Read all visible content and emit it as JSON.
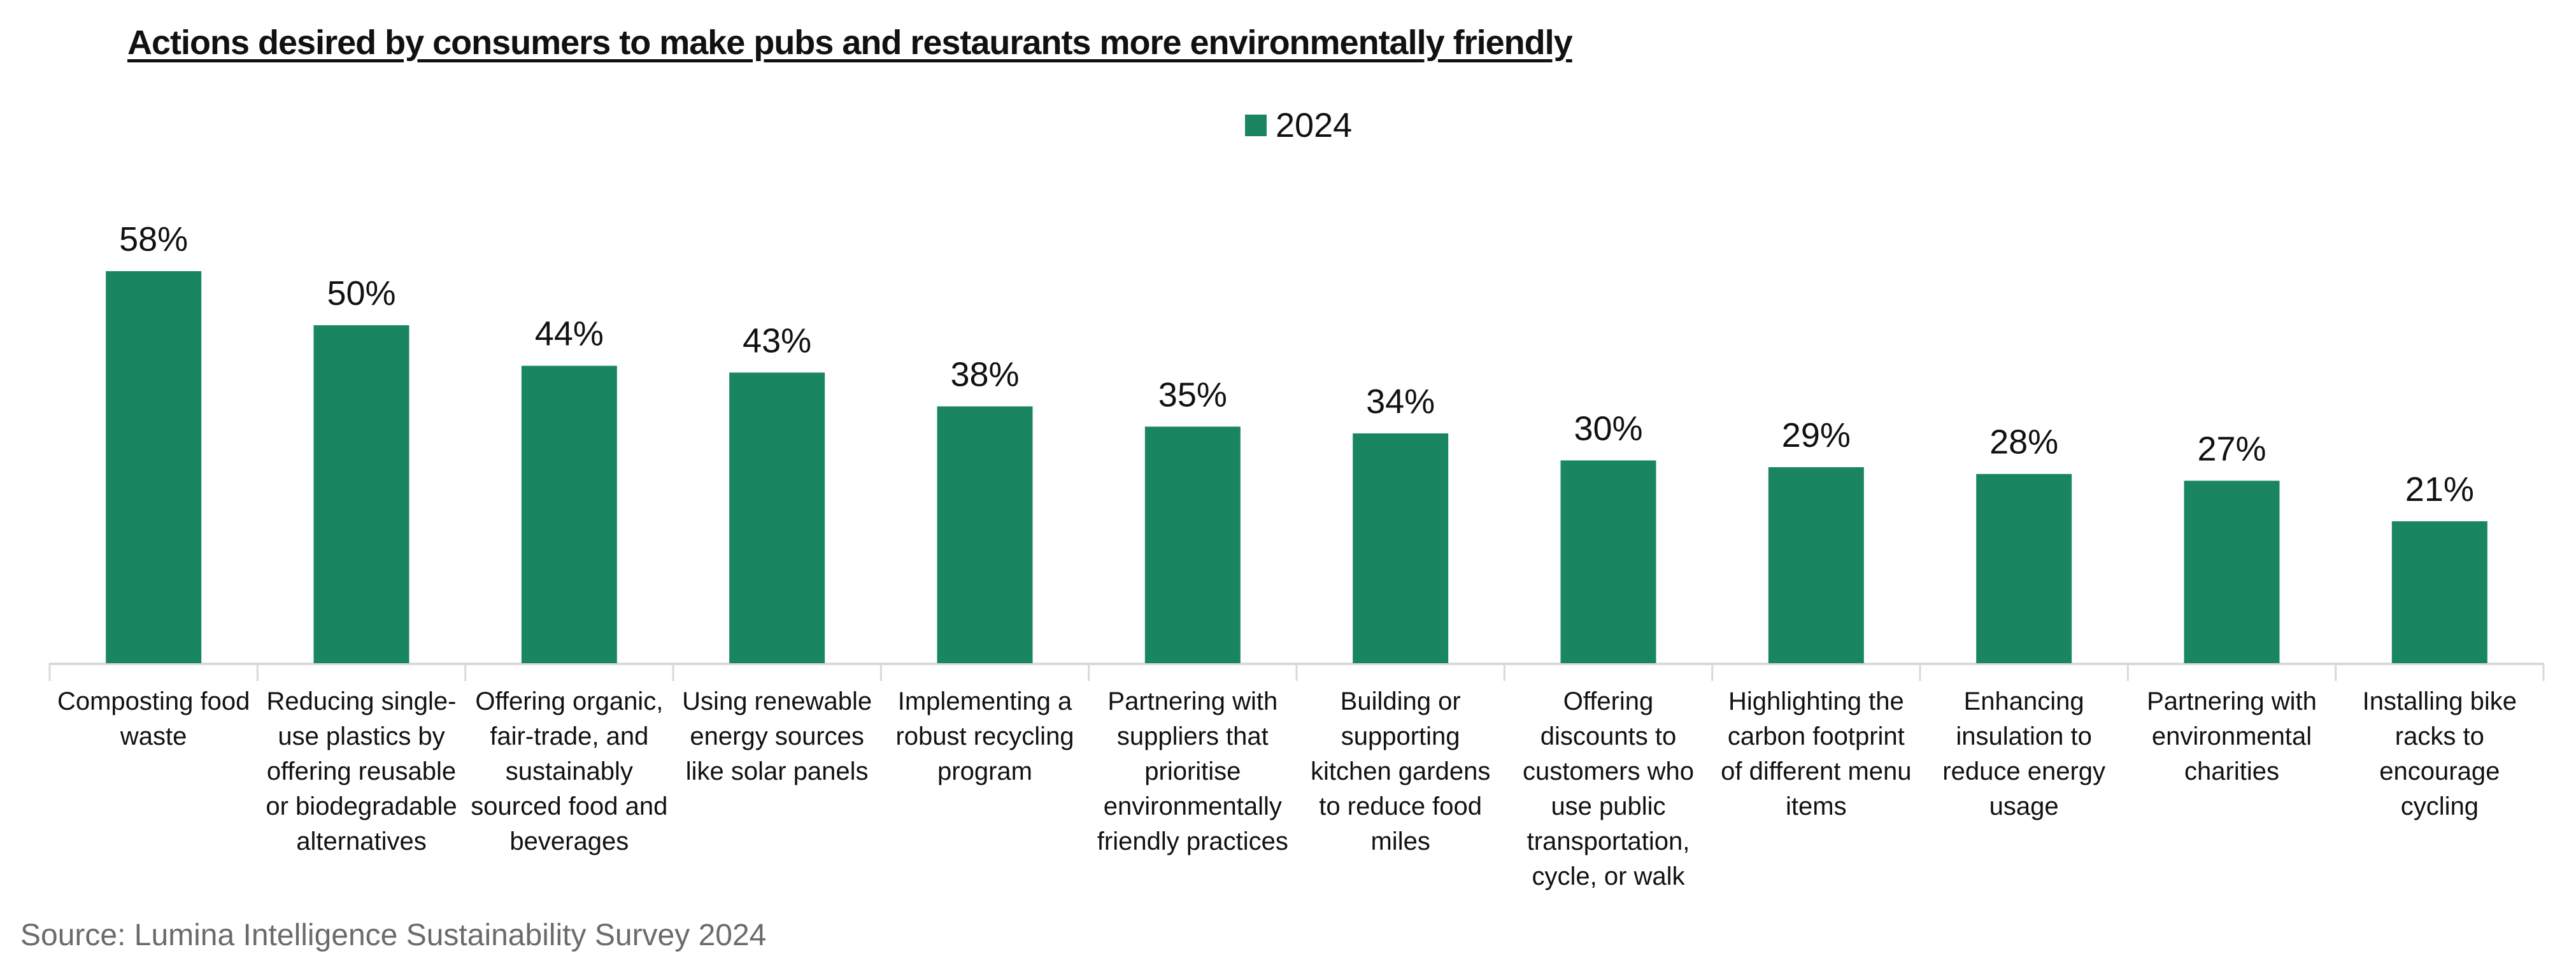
{
  "chart_data": {
    "type": "bar",
    "title": "Actions desired by consumers to make pubs and restaurants more environmentally friendly",
    "legend": {
      "placement": "top-center",
      "entries": [
        "2024"
      ]
    },
    "series": [
      {
        "name": "2024",
        "color": "#1a8661",
        "values": [
          58,
          50,
          44,
          43,
          38,
          35,
          34,
          30,
          29,
          28,
          27,
          21
        ]
      }
    ],
    "data_labels": [
      "58%",
      "50%",
      "44%",
      "43%",
      "38%",
      "35%",
      "34%",
      "30%",
      "29%",
      "28%",
      "27%",
      "21%"
    ],
    "categories": [
      "Composting food waste",
      "Reducing single-use plastics by offering reusable or biodegradable alternatives",
      "Offering organic, fair-trade, and sustainably sourced food and beverages",
      "Using renewable energy sources like solar panels",
      "Implementing a robust recycling program",
      "Partnering with suppliers that prioritise environmentally friendly practices",
      "Building or supporting kitchen gardens to reduce food miles",
      "Offering discounts to customers who use public transportation, cycle, or walk",
      "Highlighting the carbon footprint of different menu items",
      "Enhancing insulation to reduce energy usage",
      "Partnering with environmental charities",
      "Installing bike racks to encourage cycling"
    ],
    "xlabel": "",
    "ylabel": "",
    "ylim": [
      0,
      60
    ],
    "grid": false,
    "y_axis_visible": false
  },
  "source": "Source: Lumina Intelligence Sustainability Survey 2024"
}
